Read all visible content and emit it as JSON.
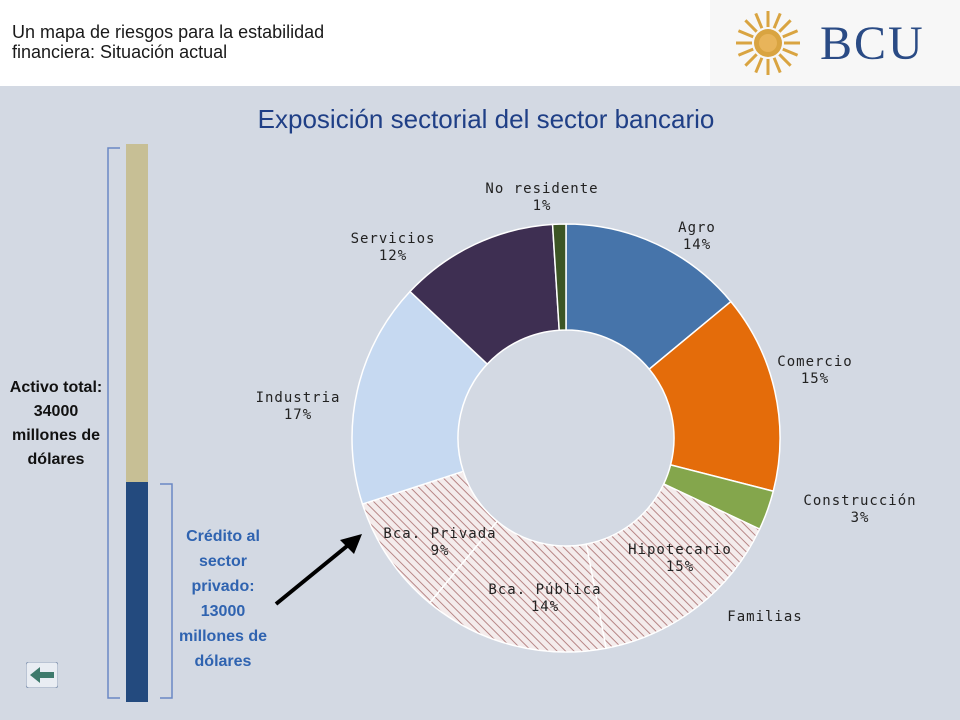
{
  "header": {
    "title": "Un mapa de riesgos para la estabilidad financiera: Situación actual"
  },
  "logo": {
    "text": "BCU"
  },
  "left_panel": {
    "total_label": "Activo total: 34000 millones de dólares",
    "credit_label": "Crédito al sector privado: 13000 millones de dólares"
  },
  "colors": {
    "agro": "#4674aa",
    "comercio": "#e46c0a",
    "construccion": "#84a64c",
    "familias_hatch": "#c9a3a3",
    "industria": "#c6d9f1",
    "servicios": "#3e2f52",
    "no_residente": "#3c5524",
    "bar_total": "#c7bf95",
    "bar_credit": "#234a7e",
    "title": "#1f3f86"
  },
  "chart_data": {
    "type": "pie",
    "title": "Exposición sectorial del sector bancario",
    "categories": [
      "Agro",
      "Comercio",
      "Construcción",
      "Hipotecario",
      "Bca. Pública",
      "Bca. Privada",
      "Industria",
      "Servicios",
      "No residente"
    ],
    "values": [
      14,
      15,
      3,
      15,
      14,
      9,
      17,
      12,
      1
    ],
    "labels": [
      "14%",
      "15%",
      "3%",
      "15%",
      "14%",
      "9%",
      "17%",
      "12%",
      "1%"
    ],
    "group_label": "Familias",
    "group_members": [
      "Hipotecario",
      "Bca. Pública",
      "Bca. Privada"
    ],
    "donut": true
  }
}
